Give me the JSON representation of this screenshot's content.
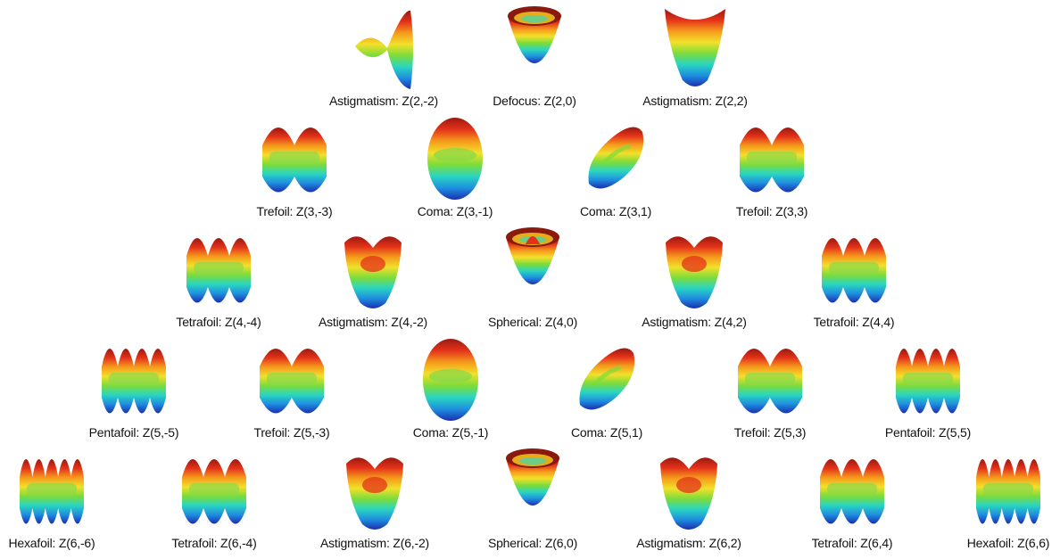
{
  "pyramid": {
    "rows": [
      [
        {
          "name": "Astigmatism",
          "index": "Z(2,-2)",
          "label": "Astigmatism: Z(2,-2)"
        },
        {
          "name": "Defocus",
          "index": "Z(2,0)",
          "label": "Defocus: Z(2,0)"
        },
        {
          "name": "Astigmatism",
          "index": "Z(2,2)",
          "label": "Astigmatism: Z(2,2)"
        }
      ],
      [
        {
          "name": "Trefoil",
          "index": "Z(3,-3)",
          "label": "Trefoil: Z(3,-3)"
        },
        {
          "name": "Coma",
          "index": "Z(3,-1)",
          "label": "Coma: Z(3,-1)"
        },
        {
          "name": "Coma",
          "index": "Z(3,1)",
          "label": "Coma: Z(3,1)"
        },
        {
          "name": "Trefoil",
          "index": "Z(3,3)",
          "label": "Trefoil: Z(3,3)"
        }
      ],
      [
        {
          "name": "Tetrafoil",
          "index": "Z(4,-4)",
          "label": "Tetrafoil: Z(4,-4)"
        },
        {
          "name": "Astigmatism",
          "index": "Z(4,-2)",
          "label": "Astigmatism: Z(4,-2)"
        },
        {
          "name": "Spherical",
          "index": "Z(4,0)",
          "label": "Spherical: Z(4,0)"
        },
        {
          "name": "Astigmatism",
          "index": "Z(4,2)",
          "label": "Astigmatism: Z(4,2)"
        },
        {
          "name": "Tetrafoil",
          "index": "Z(4,4)",
          "label": "Tetrafoil: Z(4,4)"
        }
      ],
      [
        {
          "name": "Pentafoil",
          "index": "Z(5,-5)",
          "label": "Pentafoil: Z(5,-5)"
        },
        {
          "name": "Trefoil",
          "index": "Z(5,-3)",
          "label": "Trefoil: Z(5,-3)"
        },
        {
          "name": "Coma",
          "index": "Z(5,-1)",
          "label": "Coma: Z(5,-1)"
        },
        {
          "name": "Coma",
          "index": "Z(5,1)",
          "label": "Coma: Z(5,1)"
        },
        {
          "name": "Trefoil",
          "index": "Z(5,3)",
          "label": "Trefoil: Z(5,3)"
        },
        {
          "name": "Pentafoil",
          "index": "Z(5,5)",
          "label": "Pentafoil: Z(5,5)"
        }
      ],
      [
        {
          "name": "Hexafoil",
          "index": "Z(6,-6)",
          "label": "Hexafoil: Z(6,-6)"
        },
        {
          "name": "Tetrafoil",
          "index": "Z(6,-4)",
          "label": "Tetrafoil: Z(6,-4)"
        },
        {
          "name": "Astigmatism",
          "index": "Z(6,-2)",
          "label": "Astigmatism: Z(6,-2)"
        },
        {
          "name": "Spherical",
          "index": "Z(6,0)",
          "label": "Spherical: Z(6,0)"
        },
        {
          "name": "Astigmatism",
          "index": "Z(6,2)",
          "label": "Astigmatism: Z(6,2)"
        },
        {
          "name": "Tetrafoil",
          "index": "Z(6,4)",
          "label": "Tetrafoil: Z(6,4)"
        },
        {
          "name": "Hexafoil",
          "index": "Z(6,6)",
          "label": "Hexafoil: Z(6,6)"
        }
      ]
    ]
  },
  "colormap": [
    "#1a2fb0",
    "#1f8fe0",
    "#2ad6c0",
    "#7ddc3a",
    "#f2e02a",
    "#f59a1c",
    "#e4321a",
    "#9a1a10"
  ]
}
